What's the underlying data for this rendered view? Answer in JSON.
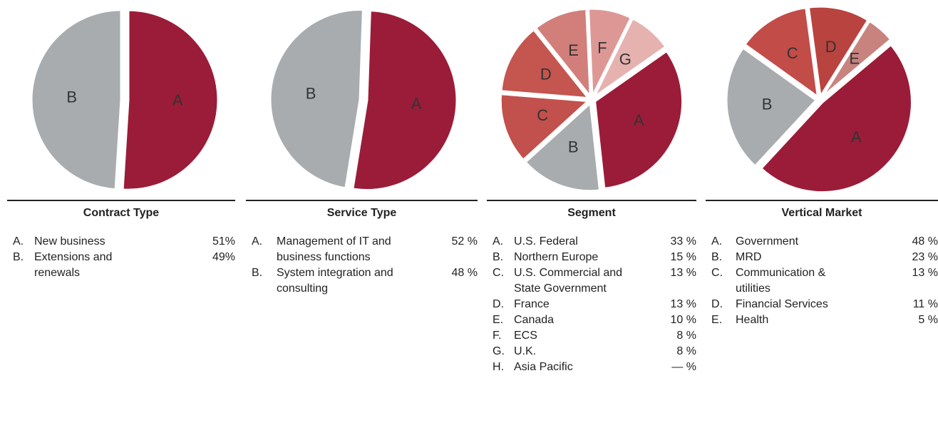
{
  "chart_data": [
    {
      "type": "pie",
      "title": "Contract Type",
      "categories": [
        "A",
        "B"
      ],
      "names": [
        "New business",
        "Extensions and renewals"
      ],
      "values": [
        51,
        49
      ],
      "value_labels": [
        "51%",
        "49%"
      ],
      "colors": [
        "#9b1c38",
        "#a8acaf"
      ]
    },
    {
      "type": "pie",
      "title": "Service Type",
      "categories": [
        "A",
        "B"
      ],
      "names": [
        "Management of IT and business functions",
        "System integration and consulting"
      ],
      "values": [
        52,
        48
      ],
      "value_labels": [
        "52 %",
        "48 %"
      ],
      "colors": [
        "#9b1c38",
        "#a8acaf"
      ]
    },
    {
      "type": "pie",
      "title": "Segment",
      "categories": [
        "A",
        "B",
        "C",
        "D",
        "E",
        "F",
        "G",
        "H"
      ],
      "names": [
        "U.S. Federal",
        "Northern Europe",
        "U.S. Commercial and State Government",
        "France",
        "Canada",
        "ECS",
        "U.K.",
        "Asia Pacific"
      ],
      "values": [
        33,
        15,
        13,
        13,
        10,
        8,
        8,
        null
      ],
      "value_labels": [
        "33 %",
        "15 %",
        "13 %",
        "13 %",
        "10 %",
        "8 %",
        "8 %",
        "— %"
      ],
      "colors": [
        "#9b1c38",
        "#a8acaf",
        "#c2504c",
        "#c5554f",
        "#d27f7b",
        "#dd9896",
        "#e5b2b0",
        "#e8c4c3"
      ]
    },
    {
      "type": "pie",
      "title": "Vertical Market",
      "categories": [
        "A",
        "B",
        "C",
        "D",
        "E"
      ],
      "names": [
        "Government",
        "MRD",
        "Communication & utilities",
        "Financial Services",
        "Health"
      ],
      "values": [
        48,
        23,
        13,
        11,
        5
      ],
      "value_labels": [
        "48 %",
        "23 %",
        "13 %",
        "11 %",
        "5 %"
      ],
      "colors": [
        "#9b1c38",
        "#a8acaf",
        "#c24c48",
        "#b9433f",
        "#c8837f"
      ]
    }
  ]
}
